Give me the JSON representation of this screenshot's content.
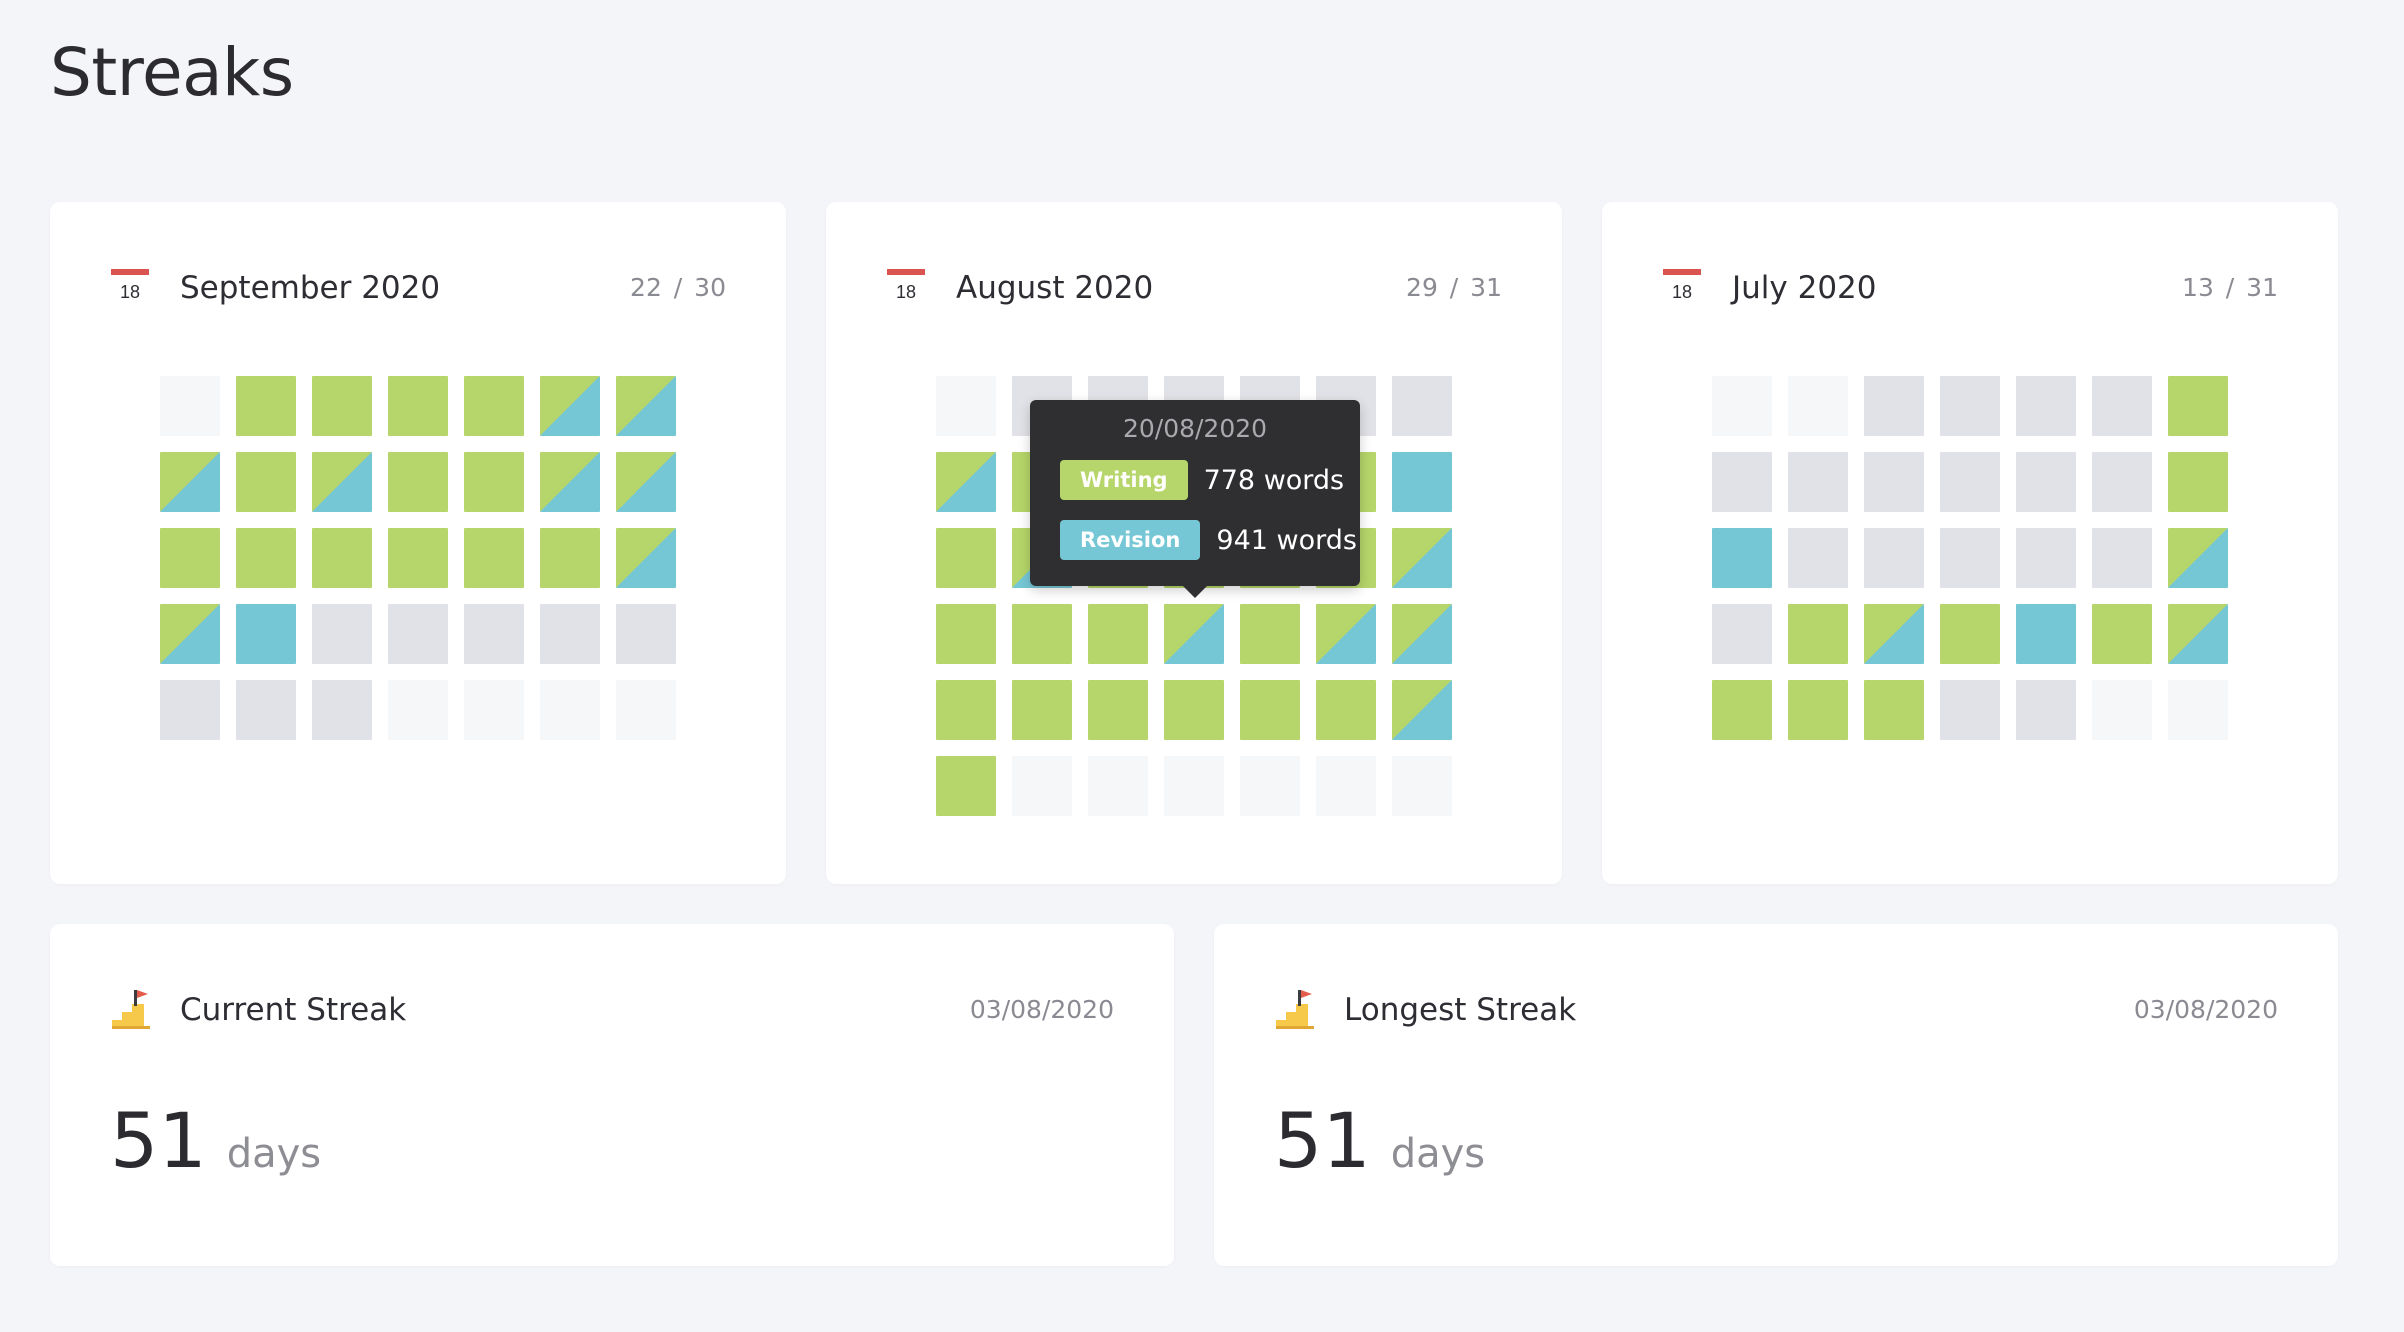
{
  "page": {
    "title": "Streaks"
  },
  "colors": {
    "writing": "#b6d56a",
    "revision": "#76c7d6",
    "inactive": "#e1e2e7",
    "outside_month": "#f6f7f9"
  },
  "months": [
    {
      "title": "September 2020",
      "count": "22 / 30",
      "icon_day": "18",
      "icon": "calendar-icon",
      "cells": [
        "empty",
        "green",
        "green",
        "green",
        "green",
        "split",
        "split",
        "split",
        "green",
        "split",
        "green",
        "green",
        "split",
        "split",
        "green",
        "green",
        "green",
        "green",
        "green",
        "green",
        "split",
        "split",
        "blue",
        "gray",
        "gray",
        "gray",
        "gray",
        "gray",
        "gray",
        "gray",
        "gray",
        "empty",
        "empty",
        "empty",
        "empty"
      ]
    },
    {
      "title": "August 2020",
      "count": "29 / 31",
      "icon_day": "18",
      "icon": "calendar-icon",
      "cells": [
        "empty",
        "gray",
        "gray",
        "gray",
        "gray",
        "gray",
        "gray",
        "split",
        "green",
        "green",
        "green",
        "green",
        "green",
        "blue",
        "green",
        "split",
        "green",
        "green",
        "green",
        "green",
        "split",
        "green",
        "green",
        "green",
        "split",
        "green",
        "split",
        "split",
        "green",
        "green",
        "green",
        "green",
        "green",
        "green",
        "split",
        "green",
        "empty",
        "empty",
        "empty",
        "empty",
        "empty",
        "empty"
      ],
      "tooltip": {
        "date": "20/08/2020",
        "writing_label": "Writing",
        "writing_value": "778 words",
        "revision_label": "Revision",
        "revision_value": "941 words"
      }
    },
    {
      "title": "July 2020",
      "count": "13 / 31",
      "icon_day": "18",
      "icon": "calendar-icon",
      "cells": [
        "empty",
        "empty",
        "gray",
        "gray",
        "gray",
        "gray",
        "green",
        "gray",
        "gray",
        "gray",
        "gray",
        "gray",
        "gray",
        "green",
        "blue",
        "gray",
        "gray",
        "gray",
        "gray",
        "gray",
        "split",
        "gray",
        "green",
        "split",
        "green",
        "blue",
        "green",
        "split",
        "green",
        "green",
        "green",
        "gray",
        "gray",
        "empty",
        "empty"
      ]
    }
  ],
  "current_streak": {
    "title": "Current Streak",
    "date": "03/08/2020",
    "value": "51",
    "unit": "days",
    "icon": "stairs-flag-icon"
  },
  "longest_streak": {
    "title": "Longest Streak",
    "date": "03/08/2020",
    "value": "51",
    "unit": "days",
    "icon": "stairs-flag-icon"
  }
}
